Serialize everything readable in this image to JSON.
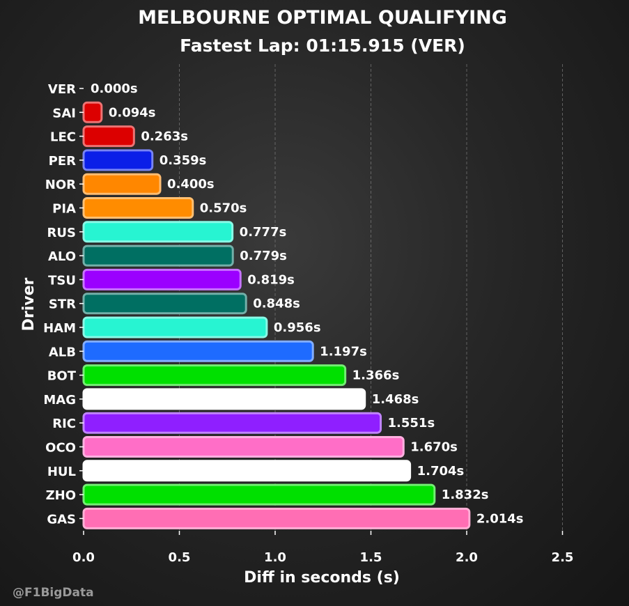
{
  "chart_data": {
    "type": "bar",
    "orientation": "horizontal",
    "title": "MELBOURNE OPTIMAL QUALIFYING",
    "subtitle": "Fastest Lap: 01:15.915 (VER)",
    "xlabel": "Diff in seconds (s)",
    "ylabel": "Driver",
    "xlim": [
      0,
      2.5
    ],
    "xticks": [
      "0.0",
      "0.5",
      "1.0",
      "1.5",
      "2.0",
      "2.5"
    ],
    "xtick_values": [
      0,
      0.5,
      1.0,
      1.5,
      2.0,
      2.5
    ],
    "grid": "vertical dashed",
    "categories": [
      "VER",
      "SAI",
      "LEC",
      "PER",
      "NOR",
      "PIA",
      "RUS",
      "ALO",
      "TSU",
      "STR",
      "HAM",
      "ALB",
      "BOT",
      "MAG",
      "RIC",
      "OCO",
      "HUL",
      "ZHO",
      "GAS"
    ],
    "values": [
      0.0,
      0.094,
      0.263,
      0.359,
      0.4,
      0.57,
      0.777,
      0.779,
      0.819,
      0.848,
      0.956,
      1.197,
      1.366,
      1.468,
      1.551,
      1.67,
      1.704,
      1.832,
      2.014
    ],
    "value_labels": [
      "0.000s",
      "0.094s",
      "0.263s",
      "0.359s",
      "0.400s",
      "0.570s",
      "0.777s",
      "0.779s",
      "0.819s",
      "0.848s",
      "0.956s",
      "1.197s",
      "1.366s",
      "1.468s",
      "1.551s",
      "1.670s",
      "1.704s",
      "1.832s",
      "2.014s"
    ],
    "colors": [
      "#1e41ff",
      "#dc0000",
      "#dc0000",
      "#0a1fe8",
      "#ff8700",
      "#ff8c00",
      "#27f4d2",
      "#006f62",
      "#9b00ff",
      "#006f62",
      "#27f4d2",
      "#1e6bff",
      "#00e000",
      "#ffffff",
      "#8f1fff",
      "#ff6ec7",
      "#ffffff",
      "#00e000",
      "#ff6eb4"
    ]
  },
  "watermark": "@F1BigData"
}
